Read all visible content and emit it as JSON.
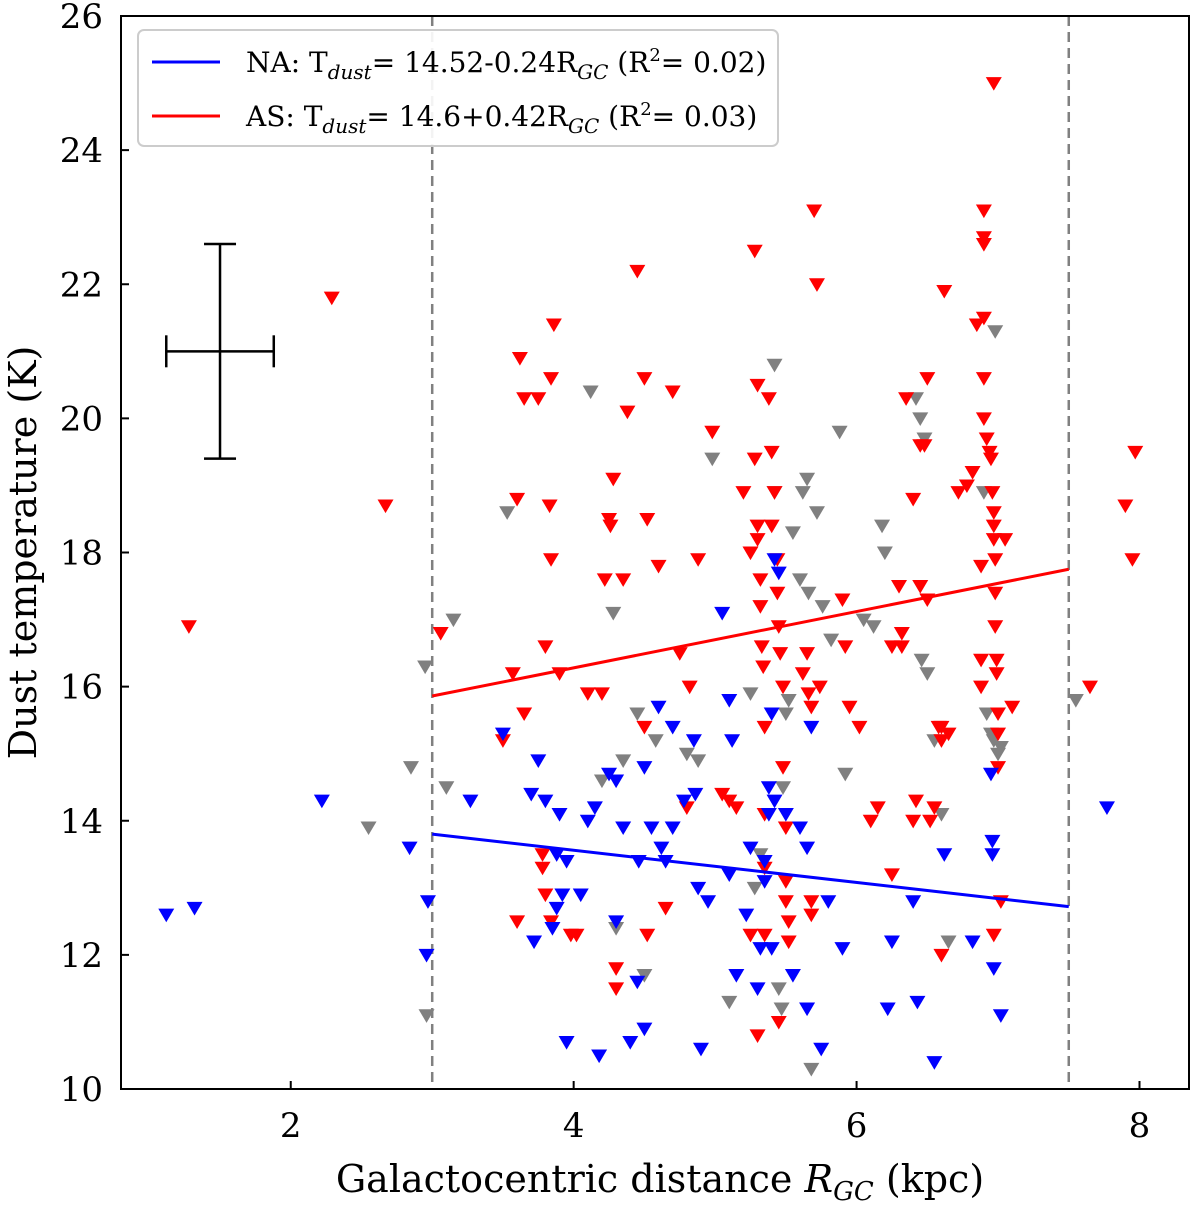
{
  "chart_data": {
    "type": "scatter",
    "xlabel": "Galactocentric distance R_GC (kpc)",
    "ylabel": "Dust temperature (K)",
    "xlim": [
      0.8,
      8.35
    ],
    "ylim": [
      10,
      26
    ],
    "xticks": [
      2,
      4,
      6,
      8
    ],
    "yticks": [
      10,
      12,
      14,
      16,
      18,
      20,
      22,
      24,
      26
    ],
    "marker": "downward-triangle",
    "vlines": [
      3.0,
      7.5
    ],
    "vline_style": "dashed",
    "vline_color": "#808080",
    "legend_position": "top-left",
    "error_bar": {
      "x": 1.5,
      "y": 21.0,
      "xerr": 0.38,
      "yerr": 1.6
    },
    "colors": {
      "NA": "#0000ff",
      "AS": "#ff0000",
      "other": "#808080"
    },
    "fits": [
      {
        "series": "NA",
        "label_prefix": "NA: T",
        "label_sub": "dust",
        "label_mid": "= 14.52-0.24R",
        "label_sub2": "GC",
        "label_r2": "(R",
        "label_r2_end": "= 0.02)",
        "intercept": 14.52,
        "slope": -0.24,
        "x_range": [
          3.0,
          7.5
        ],
        "color": "#0000ff"
      },
      {
        "series": "AS",
        "label_prefix": "AS: T",
        "label_sub": "dust",
        "label_mid": "= 14.6+0.42R",
        "label_sub2": "GC",
        "label_r2": "(R",
        "label_r2_end": "= 0.03)",
        "intercept": 14.6,
        "slope": 0.42,
        "x_range": [
          3.0,
          7.5
        ],
        "color": "#ff0000"
      }
    ],
    "series": [
      {
        "name": "AS",
        "color": "#ff0000",
        "points": [
          [
            1.28,
            16.9
          ],
          [
            2.29,
            21.8
          ],
          [
            2.67,
            18.7
          ],
          [
            3.06,
            16.8
          ],
          [
            3.5,
            15.2
          ],
          [
            3.57,
            16.2
          ],
          [
            3.6,
            18.8
          ],
          [
            3.62,
            20.9
          ],
          [
            3.65,
            20.3
          ],
          [
            3.75,
            20.3
          ],
          [
            3.8,
            16.6
          ],
          [
            3.83,
            18.7
          ],
          [
            3.84,
            20.6
          ],
          [
            3.84,
            17.9
          ],
          [
            3.86,
            21.4
          ],
          [
            3.9,
            16.2
          ],
          [
            3.78,
            13.5
          ],
          [
            3.78,
            13.3
          ],
          [
            3.8,
            12.9
          ],
          [
            3.6,
            12.5
          ],
          [
            3.84,
            12.5
          ],
          [
            3.65,
            15.6
          ],
          [
            3.98,
            12.3
          ],
          [
            4.02,
            12.3
          ],
          [
            4.1,
            15.9
          ],
          [
            4.2,
            15.9
          ],
          [
            4.22,
            17.6
          ],
          [
            4.25,
            18.5
          ],
          [
            4.26,
            18.4
          ],
          [
            4.28,
            19.1
          ],
          [
            4.3,
            11.5
          ],
          [
            4.3,
            11.8
          ],
          [
            4.35,
            17.6
          ],
          [
            4.38,
            20.1
          ],
          [
            4.45,
            22.2
          ],
          [
            4.5,
            20.6
          ],
          [
            4.52,
            18.5
          ],
          [
            4.5,
            15.4
          ],
          [
            4.52,
            12.3
          ],
          [
            4.6,
            17.8
          ],
          [
            4.65,
            12.7
          ],
          [
            4.7,
            20.4
          ],
          [
            4.75,
            16.5
          ],
          [
            4.8,
            14.2
          ],
          [
            4.82,
            16.0
          ],
          [
            4.88,
            17.9
          ],
          [
            4.98,
            19.8
          ],
          [
            5.05,
            14.4
          ],
          [
            5.1,
            14.3
          ],
          [
            5.15,
            14.2
          ],
          [
            5.2,
            18.9
          ],
          [
            5.25,
            18.0
          ],
          [
            5.25,
            12.3
          ],
          [
            5.28,
            19.4
          ],
          [
            5.3,
            20.5
          ],
          [
            5.3,
            18.4
          ],
          [
            5.3,
            18.2
          ],
          [
            5.32,
            17.6
          ],
          [
            5.32,
            17.2
          ],
          [
            5.33,
            16.6
          ],
          [
            5.34,
            16.3
          ],
          [
            5.35,
            15.4
          ],
          [
            5.35,
            13.3
          ],
          [
            5.35,
            14.1
          ],
          [
            5.3,
            10.8
          ],
          [
            5.28,
            22.5
          ],
          [
            5.38,
            20.3
          ],
          [
            5.4,
            19.5
          ],
          [
            5.42,
            18.9
          ],
          [
            5.44,
            17.9
          ],
          [
            5.45,
            16.9
          ],
          [
            5.46,
            16.5
          ],
          [
            5.48,
            16.0
          ],
          [
            5.48,
            14.8
          ],
          [
            5.5,
            13.9
          ],
          [
            5.5,
            13.1
          ],
          [
            5.5,
            12.8
          ],
          [
            5.52,
            12.5
          ],
          [
            5.52,
            12.2
          ],
          [
            5.45,
            11.0
          ],
          [
            5.35,
            12.3
          ],
          [
            5.4,
            18.4
          ],
          [
            5.44,
            17.4
          ],
          [
            5.62,
            16.2
          ],
          [
            5.65,
            16.5
          ],
          [
            5.66,
            15.9
          ],
          [
            5.68,
            15.7
          ],
          [
            5.68,
            12.8
          ],
          [
            5.68,
            12.6
          ],
          [
            5.7,
            23.1
          ],
          [
            5.72,
            22.0
          ],
          [
            5.74,
            16.0
          ],
          [
            5.9,
            17.3
          ],
          [
            5.92,
            16.6
          ],
          [
            5.95,
            15.7
          ],
          [
            6.15,
            14.2
          ],
          [
            6.25,
            16.6
          ],
          [
            6.25,
            13.2
          ],
          [
            6.3,
            17.5
          ],
          [
            6.32,
            16.8
          ],
          [
            6.32,
            16.6
          ],
          [
            6.35,
            20.3
          ],
          [
            6.4,
            18.8
          ],
          [
            6.45,
            19.6
          ],
          [
            6.45,
            17.5
          ],
          [
            6.5,
            20.6
          ],
          [
            6.48,
            19.6
          ],
          [
            6.5,
            17.3
          ],
          [
            6.52,
            14.0
          ],
          [
            6.55,
            14.2
          ],
          [
            6.58,
            15.4
          ],
          [
            6.6,
            15.4
          ],
          [
            6.6,
            15.2
          ],
          [
            6.62,
            21.9
          ],
          [
            6.65,
            15.3
          ],
          [
            6.6,
            12.0
          ],
          [
            6.72,
            18.9
          ],
          [
            6.78,
            19.0
          ],
          [
            6.82,
            19.2
          ],
          [
            6.85,
            21.4
          ],
          [
            6.4,
            14.0
          ],
          [
            6.42,
            14.3
          ],
          [
            6.1,
            14.0
          ],
          [
            6.02,
            15.4
          ],
          [
            6.9,
            23.1
          ],
          [
            6.9,
            22.7
          ],
          [
            6.9,
            22.6
          ],
          [
            6.9,
            21.5
          ],
          [
            6.9,
            20.6
          ],
          [
            6.9,
            20.0
          ],
          [
            6.92,
            19.7
          ],
          [
            6.94,
            19.5
          ],
          [
            6.95,
            19.4
          ],
          [
            6.96,
            18.9
          ],
          [
            6.97,
            18.6
          ],
          [
            6.97,
            18.4
          ],
          [
            6.97,
            18.2
          ],
          [
            6.98,
            17.9
          ],
          [
            6.98,
            17.4
          ],
          [
            6.98,
            16.9
          ],
          [
            6.99,
            16.4
          ],
          [
            6.99,
            16.2
          ],
          [
            7.0,
            15.6
          ],
          [
            7.0,
            15.3
          ],
          [
            7.0,
            14.8
          ],
          [
            6.97,
            25.0
          ],
          [
            7.02,
            12.8
          ],
          [
            6.97,
            12.3
          ],
          [
            7.05,
            18.2
          ],
          [
            7.1,
            15.7
          ],
          [
            6.88,
            17.8
          ],
          [
            6.88,
            16.4
          ],
          [
            6.88,
            16.0
          ],
          [
            7.65,
            16.0
          ],
          [
            7.9,
            18.7
          ],
          [
            7.95,
            17.9
          ],
          [
            7.97,
            19.5
          ]
        ]
      },
      {
        "name": "NA",
        "color": "#0000ff",
        "points": [
          [
            1.12,
            12.6
          ],
          [
            1.32,
            12.7
          ],
          [
            2.22,
            14.3
          ],
          [
            2.84,
            13.6
          ],
          [
            2.97,
            12.8
          ],
          [
            2.96,
            12.0
          ],
          [
            3.27,
            14.3
          ],
          [
            3.5,
            15.3
          ],
          [
            3.7,
            14.4
          ],
          [
            3.72,
            12.2
          ],
          [
            3.75,
            14.9
          ],
          [
            3.8,
            14.3
          ],
          [
            3.85,
            12.4
          ],
          [
            3.88,
            13.5
          ],
          [
            3.88,
            12.7
          ],
          [
            3.9,
            14.1
          ],
          [
            3.92,
            12.9
          ],
          [
            3.95,
            13.4
          ],
          [
            3.95,
            10.7
          ],
          [
            4.05,
            12.9
          ],
          [
            4.1,
            14.0
          ],
          [
            4.15,
            14.2
          ],
          [
            4.18,
            10.5
          ],
          [
            4.25,
            14.7
          ],
          [
            4.3,
            14.6
          ],
          [
            4.3,
            12.5
          ],
          [
            4.35,
            13.9
          ],
          [
            4.4,
            10.7
          ],
          [
            4.45,
            11.6
          ],
          [
            4.46,
            13.4
          ],
          [
            4.5,
            14.8
          ],
          [
            4.5,
            10.9
          ],
          [
            4.55,
            13.9
          ],
          [
            4.6,
            15.7
          ],
          [
            4.62,
            13.6
          ],
          [
            4.65,
            13.4
          ],
          [
            4.7,
            15.4
          ],
          [
            4.7,
            13.9
          ],
          [
            4.78,
            14.3
          ],
          [
            4.85,
            15.2
          ],
          [
            4.86,
            14.4
          ],
          [
            4.88,
            13.0
          ],
          [
            4.9,
            10.6
          ],
          [
            4.95,
            12.8
          ],
          [
            5.05,
            17.1
          ],
          [
            5.1,
            13.2
          ],
          [
            5.12,
            15.2
          ],
          [
            5.15,
            11.7
          ],
          [
            5.22,
            12.6
          ],
          [
            5.25,
            13.6
          ],
          [
            5.3,
            11.5
          ],
          [
            5.32,
            12.1
          ],
          [
            5.35,
            13.1
          ],
          [
            5.35,
            13.4
          ],
          [
            5.38,
            14.1
          ],
          [
            5.4,
            12.1
          ],
          [
            5.42,
            14.3
          ],
          [
            5.42,
            17.9
          ],
          [
            5.45,
            17.7
          ],
          [
            5.5,
            14.1
          ],
          [
            5.55,
            11.7
          ],
          [
            5.6,
            13.9
          ],
          [
            5.65,
            11.2
          ],
          [
            5.65,
            13.6
          ],
          [
            5.68,
            15.4
          ],
          [
            5.75,
            10.6
          ],
          [
            5.8,
            12.8
          ],
          [
            5.9,
            12.1
          ],
          [
            6.22,
            11.2
          ],
          [
            6.25,
            12.2
          ],
          [
            6.4,
            12.8
          ],
          [
            6.43,
            11.3
          ],
          [
            6.55,
            10.4
          ],
          [
            6.62,
            13.5
          ],
          [
            6.82,
            12.2
          ],
          [
            6.95,
            14.7
          ],
          [
            6.96,
            13.7
          ],
          [
            6.96,
            13.5
          ],
          [
            6.97,
            11.8
          ],
          [
            7.02,
            11.1
          ],
          [
            7.77,
            14.2
          ],
          [
            5.38,
            14.5
          ],
          [
            5.4,
            15.6
          ],
          [
            5.1,
            15.8
          ]
        ]
      },
      {
        "name": "other",
        "color": "#808080",
        "points": [
          [
            2.55,
            13.9
          ],
          [
            2.85,
            14.8
          ],
          [
            2.95,
            16.3
          ],
          [
            2.96,
            11.1
          ],
          [
            3.1,
            14.5
          ],
          [
            3.15,
            17.0
          ],
          [
            3.53,
            18.6
          ],
          [
            4.12,
            20.4
          ],
          [
            4.2,
            14.6
          ],
          [
            4.28,
            17.1
          ],
          [
            4.3,
            12.4
          ],
          [
            4.35,
            14.9
          ],
          [
            4.45,
            15.6
          ],
          [
            4.5,
            11.7
          ],
          [
            4.58,
            15.2
          ],
          [
            4.8,
            15.0
          ],
          [
            4.88,
            14.9
          ],
          [
            4.98,
            19.4
          ],
          [
            5.1,
            11.3
          ],
          [
            5.25,
            15.9
          ],
          [
            5.28,
            13.0
          ],
          [
            5.32,
            13.5
          ],
          [
            5.42,
            18.9
          ],
          [
            5.42,
            20.8
          ],
          [
            5.45,
            11.5
          ],
          [
            5.47,
            11.2
          ],
          [
            5.48,
            14.5
          ],
          [
            5.5,
            15.6
          ],
          [
            5.52,
            15.8
          ],
          [
            5.55,
            18.3
          ],
          [
            5.6,
            17.6
          ],
          [
            5.62,
            18.9
          ],
          [
            5.65,
            19.1
          ],
          [
            5.66,
            17.4
          ],
          [
            5.68,
            10.3
          ],
          [
            5.72,
            18.6
          ],
          [
            5.76,
            17.2
          ],
          [
            5.82,
            16.7
          ],
          [
            5.88,
            19.8
          ],
          [
            5.92,
            14.7
          ],
          [
            6.05,
            17.0
          ],
          [
            6.12,
            16.9
          ],
          [
            6.18,
            18.4
          ],
          [
            6.2,
            18.0
          ],
          [
            6.42,
            20.3
          ],
          [
            6.45,
            20.0
          ],
          [
            6.46,
            16.4
          ],
          [
            6.48,
            19.7
          ],
          [
            6.5,
            16.2
          ],
          [
            6.55,
            15.2
          ],
          [
            6.6,
            14.1
          ],
          [
            6.65,
            12.2
          ],
          [
            6.9,
            18.9
          ],
          [
            6.92,
            15.6
          ],
          [
            6.95,
            15.3
          ],
          [
            6.97,
            15.2
          ],
          [
            6.98,
            21.3
          ],
          [
            7.0,
            15.0
          ],
          [
            7.02,
            15.1
          ],
          [
            7.55,
            15.8
          ]
        ]
      }
    ]
  }
}
